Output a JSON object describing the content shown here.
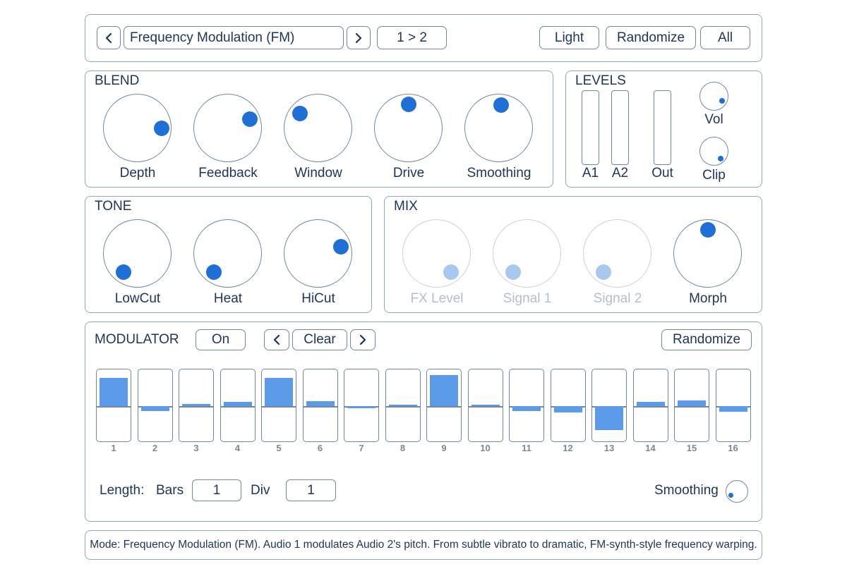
{
  "header": {
    "prev_symbol": "‹",
    "mode": "Frequency Modulation (FM)",
    "next_symbol": "›",
    "routing": "1 > 2",
    "theme_button": "Light",
    "randomize_button": "Randomize",
    "all_button": "All"
  },
  "blend": {
    "title": "BLEND",
    "knobs": [
      {
        "label": "Depth"
      },
      {
        "label": "Feedback"
      },
      {
        "label": "Window"
      },
      {
        "label": "Drive"
      },
      {
        "label": "Smoothing"
      }
    ]
  },
  "levels": {
    "title": "LEVELS",
    "meters": [
      {
        "label": "A1"
      },
      {
        "label": "A2"
      },
      {
        "label": "Out"
      }
    ],
    "knobs": [
      {
        "label": "Vol"
      },
      {
        "label": "Clip"
      }
    ]
  },
  "tone": {
    "title": "TONE",
    "knobs": [
      {
        "label": "LowCut"
      },
      {
        "label": "Heat"
      },
      {
        "label": "HiCut"
      }
    ]
  },
  "mix": {
    "title": "MIX",
    "knobs": [
      {
        "label": "FX Level",
        "enabled": false
      },
      {
        "label": "Signal 1",
        "enabled": false
      },
      {
        "label": "Signal 2",
        "enabled": false
      },
      {
        "label": "Morph",
        "enabled": true
      }
    ]
  },
  "modulator": {
    "title": "MODULATOR",
    "on_button": "On",
    "prev_symbol": "‹",
    "preset": "Clear",
    "next_symbol": "›",
    "randomize_button": "Randomize",
    "step_values": [
      0.8,
      -0.13,
      0.06,
      0.13,
      0.8,
      0.15,
      -0.05,
      0.02,
      0.88,
      0.02,
      -0.13,
      -0.17,
      -0.67,
      0.12,
      0.17,
      -0.15
    ],
    "steps": [
      "1",
      "2",
      "3",
      "4",
      "5",
      "6",
      "7",
      "8",
      "9",
      "10",
      "11",
      "12",
      "13",
      "14",
      "15",
      "16"
    ],
    "length_label": "Length:",
    "bars_label": "Bars",
    "bars_value": "1",
    "div_label": "Div",
    "div_value": "1",
    "smoothing_label": "Smoothing"
  },
  "footer": {
    "description": "Mode: Frequency Modulation (FM). Audio 1 modulates Audio 2's pitch. From subtle vibrato to dramatic, FM-synth-style frequency warping."
  },
  "colors": {
    "accent": "#1f6fd6",
    "step_bar": "#5a9ae6",
    "border": "#6f88aa",
    "disabled": "#a9c8f0"
  }
}
